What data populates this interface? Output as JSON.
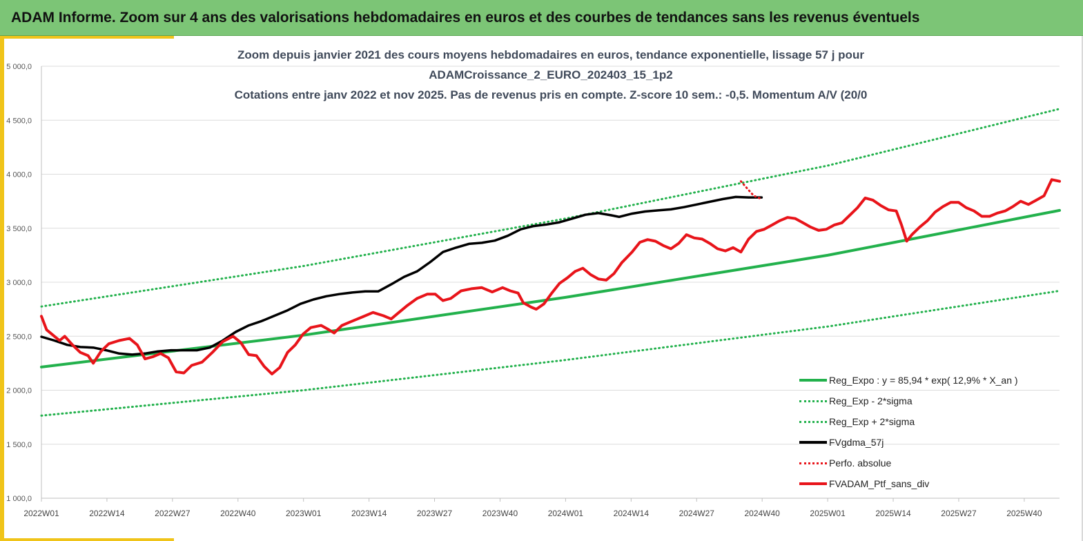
{
  "banner": {
    "title": "ADAM Informe. Zoom sur 4 ans des valorisations hebdomadaires en euros et des courbes de tendances sans les revenus éventuels"
  },
  "colors": {
    "banner_bg": "#7cc576",
    "frame": "#f0c419",
    "trend": "#22b14c",
    "gdma": "#000000",
    "ptf": "#e8141a"
  },
  "chart_data": {
    "type": "line",
    "title_lines": [
      "Zoom depuis janvier 2021 des cours moyens hebdomadaires  en euros, tendance exponentielle, lissage 57 j pour",
      "ADAMCroissance_2_EURO_202403_15_1p2",
      "Cotations entre janv 2022 et nov 2025. Pas de revenus pris en compte. Z-score 10 sem.: -0,5. Momentum A/V (20/0"
    ],
    "xlabel": "",
    "ylabel": "",
    "ylim": [
      1000,
      5000
    ],
    "y_ticks": [
      1000,
      1500,
      2000,
      2500,
      3000,
      3500,
      4000,
      4500,
      5000
    ],
    "y_tick_labels": [
      "1 000,0",
      "1 500,0",
      "2 000,0",
      "2 500,0",
      "3 000,0",
      "3 500,0",
      "4 000,0",
      "4 500,0",
      "5 000,0"
    ],
    "x_range_weeks": [
      0,
      202
    ],
    "x_ticks": [
      {
        "label": "2022W01",
        "week": 0
      },
      {
        "label": "2022W14",
        "week": 13
      },
      {
        "label": "2022W27",
        "week": 26
      },
      {
        "label": "2022W40",
        "week": 39
      },
      {
        "label": "2023W01",
        "week": 52
      },
      {
        "label": "2023W14",
        "week": 65
      },
      {
        "label": "2023W27",
        "week": 78
      },
      {
        "label": "2023W40",
        "week": 91
      },
      {
        "label": "2024W01",
        "week": 104
      },
      {
        "label": "2024W14",
        "week": 117
      },
      {
        "label": "2024W27",
        "week": 130
      },
      {
        "label": "2024W40",
        "week": 143
      },
      {
        "label": "2025W01",
        "week": 156
      },
      {
        "label": "2025W14",
        "week": 169
      },
      {
        "label": "2025W27",
        "week": 182
      },
      {
        "label": "2025W40",
        "week": 195
      }
    ],
    "grid": true,
    "legend_position": "bottom-right",
    "series": [
      {
        "name": "Reg_Expo : y = 85,94 * exp( 12,9% *  X_an )",
        "style": "solid-thick",
        "color": "#22b14c",
        "points": [
          [
            0,
            2215
          ],
          [
            52,
            2510
          ],
          [
            104,
            2860
          ],
          [
            156,
            3250
          ],
          [
            202,
            3665
          ]
        ]
      },
      {
        "name": "Reg_Exp - 2*sigma",
        "style": "dotted",
        "color": "#22b14c",
        "points": [
          [
            0,
            1765
          ],
          [
            52,
            2000
          ],
          [
            104,
            2280
          ],
          [
            156,
            2590
          ],
          [
            202,
            2920
          ]
        ]
      },
      {
        "name": "Reg_Exp + 2*sigma",
        "style": "dotted",
        "color": "#22b14c",
        "points": [
          [
            0,
            2775
          ],
          [
            52,
            3150
          ],
          [
            104,
            3590
          ],
          [
            156,
            4080
          ],
          [
            202,
            4605
          ]
        ]
      },
      {
        "name": "FVgdma_57j",
        "style": "solid",
        "color": "#000000",
        "points": [
          [
            0,
            2495
          ],
          [
            5,
            2460
          ],
          [
            10,
            2420
          ],
          [
            15,
            2400
          ],
          [
            20,
            2395
          ],
          [
            25,
            2370
          ],
          [
            30,
            2340
          ],
          [
            35,
            2330
          ],
          [
            40,
            2340
          ],
          [
            45,
            2360
          ],
          [
            50,
            2370
          ],
          [
            55,
            2370
          ],
          [
            60,
            2370
          ],
          [
            65,
            2395
          ],
          [
            70,
            2460
          ],
          [
            75,
            2540
          ],
          [
            80,
            2600
          ],
          [
            85,
            2640
          ],
          [
            90,
            2690
          ],
          [
            95,
            2740
          ],
          [
            100,
            2800
          ],
          [
            105,
            2840
          ],
          [
            110,
            2870
          ],
          [
            115,
            2890
          ],
          [
            120,
            2905
          ],
          [
            125,
            2915
          ],
          [
            130,
            2915
          ],
          [
            135,
            2980
          ],
          [
            140,
            3050
          ],
          [
            145,
            3100
          ],
          [
            150,
            3185
          ],
          [
            155,
            3280
          ],
          [
            160,
            3320
          ],
          [
            165,
            3355
          ],
          [
            170,
            3365
          ],
          [
            175,
            3385
          ],
          [
            180,
            3430
          ],
          [
            185,
            3490
          ],
          [
            190,
            3520
          ],
          [
            195,
            3535
          ],
          [
            200,
            3555
          ],
          [
            205,
            3590
          ],
          [
            210,
            3625
          ],
          [
            215,
            3640
          ],
          [
            220,
            3620
          ],
          [
            223,
            3605
          ],
          [
            228,
            3635
          ],
          [
            233,
            3655
          ],
          [
            238,
            3665
          ],
          [
            243,
            3675
          ],
          [
            248,
            3695
          ],
          [
            253,
            3720
          ],
          [
            258,
            3745
          ],
          [
            263,
            3770
          ],
          [
            268,
            3790
          ],
          [
            273,
            3785
          ],
          [
            278,
            3785
          ]
        ]
      },
      {
        "name": "Perfo. absolue",
        "style": "dotted",
        "color": "#e8141a",
        "points": [
          [
            270,
            3935
          ],
          [
            272,
            3880
          ],
          [
            275,
            3800
          ],
          [
            278,
            3770
          ]
        ]
      },
      {
        "name": "FVADAM_Ptf_sans_div",
        "style": "solid-thick",
        "color": "#e8141a",
        "points": [
          [
            0,
            2685
          ],
          [
            2,
            2560
          ],
          [
            5,
            2500
          ],
          [
            7,
            2460
          ],
          [
            9,
            2500
          ],
          [
            12,
            2420
          ],
          [
            15,
            2350
          ],
          [
            18,
            2320
          ],
          [
            20,
            2250
          ],
          [
            23,
            2360
          ],
          [
            26,
            2430
          ],
          [
            30,
            2460
          ],
          [
            34,
            2480
          ],
          [
            37,
            2420
          ],
          [
            40,
            2290
          ],
          [
            43,
            2310
          ],
          [
            46,
            2340
          ],
          [
            49,
            2300
          ],
          [
            52,
            2170
          ],
          [
            55,
            2160
          ],
          [
            58,
            2230
          ],
          [
            62,
            2260
          ],
          [
            66,
            2350
          ],
          [
            70,
            2450
          ],
          [
            74,
            2500
          ],
          [
            77,
            2440
          ],
          [
            80,
            2330
          ],
          [
            83,
            2320
          ],
          [
            86,
            2220
          ],
          [
            89,
            2150
          ],
          [
            92,
            2210
          ],
          [
            95,
            2350
          ],
          [
            98,
            2420
          ],
          [
            101,
            2520
          ],
          [
            104,
            2580
          ],
          [
            108,
            2600
          ],
          [
            111,
            2560
          ],
          [
            113,
            2530
          ],
          [
            116,
            2600
          ],
          [
            120,
            2640
          ],
          [
            124,
            2680
          ],
          [
            128,
            2720
          ],
          [
            132,
            2690
          ],
          [
            135,
            2660
          ],
          [
            138,
            2720
          ],
          [
            141,
            2780
          ],
          [
            145,
            2850
          ],
          [
            149,
            2890
          ],
          [
            152,
            2890
          ],
          [
            155,
            2830
          ],
          [
            158,
            2850
          ],
          [
            162,
            2920
          ],
          [
            166,
            2940
          ],
          [
            170,
            2950
          ],
          [
            174,
            2910
          ],
          [
            178,
            2950
          ],
          [
            181,
            2920
          ],
          [
            184,
            2900
          ],
          [
            186,
            2810
          ],
          [
            189,
            2770
          ],
          [
            191,
            2750
          ],
          [
            194,
            2800
          ],
          [
            197,
            2900
          ],
          [
            200,
            2990
          ],
          [
            203,
            3040
          ],
          [
            206,
            3100
          ],
          [
            209,
            3130
          ],
          [
            212,
            3070
          ],
          [
            215,
            3030
          ],
          [
            218,
            3020
          ],
          [
            221,
            3080
          ],
          [
            224,
            3180
          ],
          [
            228,
            3280
          ],
          [
            231,
            3370
          ],
          [
            234,
            3395
          ],
          [
            237,
            3380
          ],
          [
            240,
            3340
          ],
          [
            243,
            3310
          ],
          [
            246,
            3360
          ],
          [
            249,
            3440
          ],
          [
            252,
            3410
          ],
          [
            255,
            3400
          ],
          [
            258,
            3360
          ],
          [
            261,
            3310
          ],
          [
            264,
            3290
          ],
          [
            267,
            3320
          ],
          [
            270,
            3280
          ],
          [
            273,
            3400
          ],
          [
            276,
            3470
          ],
          [
            279,
            3490
          ],
          [
            282,
            3530
          ],
          [
            285,
            3570
          ],
          [
            288,
            3600
          ],
          [
            291,
            3590
          ],
          [
            294,
            3550
          ],
          [
            297,
            3510
          ],
          [
            300,
            3480
          ],
          [
            303,
            3490
          ],
          [
            306,
            3530
          ],
          [
            309,
            3550
          ],
          [
            312,
            3620
          ],
          [
            315,
            3690
          ],
          [
            318,
            3780
          ],
          [
            321,
            3760
          ],
          [
            324,
            3710
          ],
          [
            327,
            3670
          ],
          [
            330,
            3660
          ],
          [
            332,
            3530
          ],
          [
            334,
            3380
          ],
          [
            336,
            3440
          ],
          [
            339,
            3510
          ],
          [
            342,
            3570
          ],
          [
            345,
            3650
          ],
          [
            348,
            3700
          ],
          [
            351,
            3740
          ],
          [
            354,
            3740
          ],
          [
            357,
            3690
          ],
          [
            360,
            3660
          ],
          [
            363,
            3610
          ],
          [
            366,
            3610
          ],
          [
            369,
            3640
          ],
          [
            372,
            3660
          ],
          [
            375,
            3700
          ],
          [
            378,
            3750
          ],
          [
            381,
            3720
          ],
          [
            384,
            3760
          ],
          [
            387,
            3800
          ],
          [
            390,
            3950
          ],
          [
            393,
            3935
          ]
        ]
      }
    ]
  },
  "legend": [
    {
      "label": "Reg_Expo : y = 85,94 * exp( 12,9% *  X_an )",
      "color": "#22b14c",
      "style": "solid",
      "width": 4
    },
    {
      "label": "Reg_Exp - 2*sigma",
      "color": "#22b14c",
      "style": "dotted",
      "width": 3
    },
    {
      "label": "Reg_Exp + 2*sigma",
      "color": "#22b14c",
      "style": "dotted",
      "width": 3
    },
    {
      "label": "FVgdma_57j",
      "color": "#000000",
      "style": "solid",
      "width": 4
    },
    {
      "label": "Perfo. absolue",
      "color": "#e8141a",
      "style": "dotted",
      "width": 3
    },
    {
      "label": "FVADAM_Ptf_sans_div",
      "color": "#e8141a",
      "style": "solid",
      "width": 4
    }
  ]
}
